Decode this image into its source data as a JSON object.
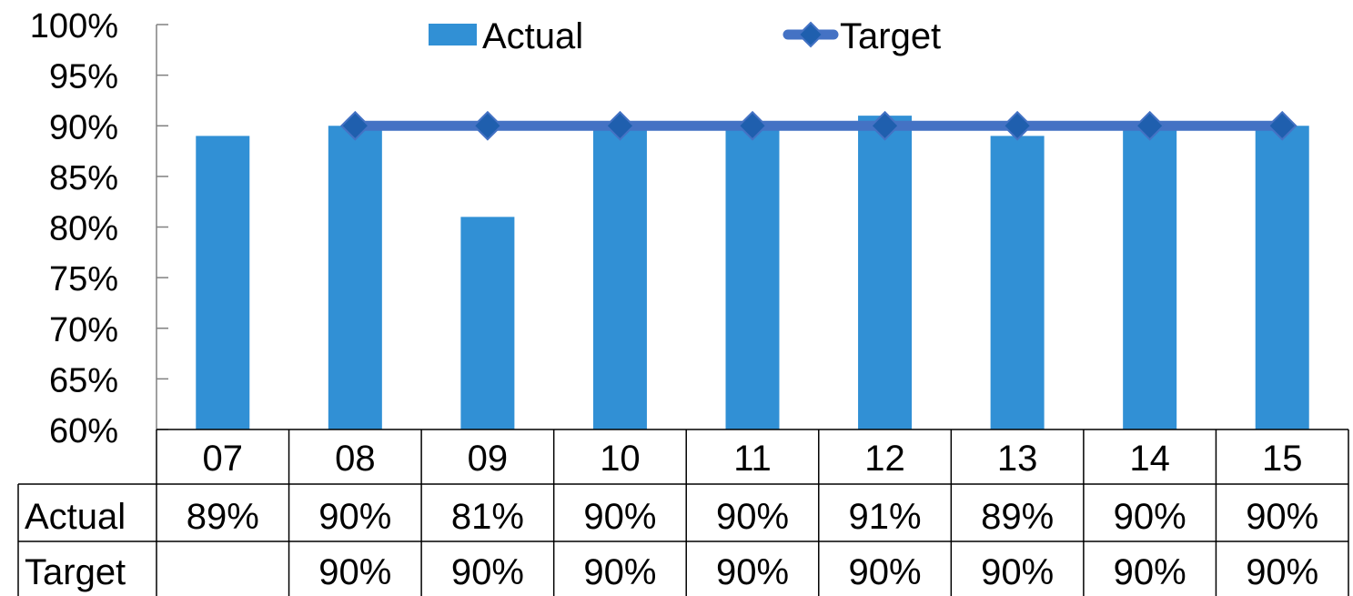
{
  "chart_data": {
    "type": "bar",
    "categories": [
      "07",
      "08",
      "09",
      "10",
      "11",
      "12",
      "13",
      "14",
      "15"
    ],
    "series": [
      {
        "name": "Actual",
        "type": "bar",
        "values": [
          89,
          90,
          81,
          90,
          90,
          91,
          89,
          90,
          90
        ],
        "labels": [
          "89%",
          "90%",
          "81%",
          "90%",
          "90%",
          "91%",
          "89%",
          "90%",
          "90%"
        ],
        "color": "#3190D5"
      },
      {
        "name": "Target",
        "type": "line",
        "values": [
          null,
          90,
          90,
          90,
          90,
          90,
          90,
          90,
          90
        ],
        "labels": [
          "",
          "90%",
          "90%",
          "90%",
          "90%",
          "90%",
          "90%",
          "90%",
          "90%"
        ],
        "color": "#4472C4",
        "marker_color": "#1F5FAE",
        "marker": "diamond"
      }
    ],
    "yticks": [
      "60%",
      "65%",
      "70%",
      "75%",
      "80%",
      "85%",
      "90%",
      "95%",
      "100%"
    ],
    "ylim": [
      60,
      100
    ],
    "ytick_step": 5,
    "title": "",
    "xlabel": "",
    "ylabel": "",
    "grid": false,
    "legend": "top-center",
    "data_table": true
  }
}
